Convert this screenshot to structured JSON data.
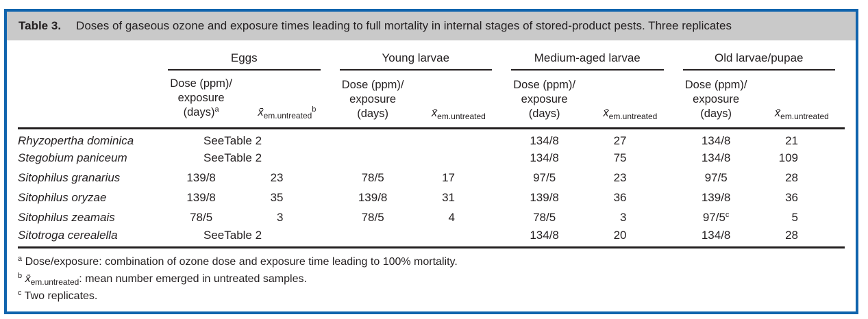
{
  "colors": {
    "frame_border_blue": "#1064ad",
    "title_bar_gray": "#c9c9c9",
    "text_black": "#231f20",
    "rule_black": "#231f20"
  },
  "title": {
    "label": "Table 3.",
    "caption": "Doses of gaseous ozone and exposure times leading to full mortality in internal stages of stored-product pests. Three replicates"
  },
  "groups": [
    {
      "label": "Eggs"
    },
    {
      "label": "Young larvae"
    },
    {
      "label": "Medium-aged larvae"
    },
    {
      "label": "Old larvae/pupae"
    }
  ],
  "subheaders": {
    "dose_line1": "Dose (ppm)/",
    "dose_line2": "exposure",
    "dose_line3": "(days)",
    "dose_sup_a": "a",
    "xbar": "x̄",
    "xbar_sub": "em.untreated",
    "xbar_sup_b": "b"
  },
  "rows": [
    {
      "species": "Rhyzopertha dominica",
      "eggs_note": "SeeTable 2",
      "young_dose": "",
      "young_x": "",
      "medium_dose": "134/8",
      "medium_x": "27",
      "old_dose": "134/8",
      "old_x": "21"
    },
    {
      "species": "Stegobium paniceum",
      "eggs_note": "SeeTable 2",
      "young_dose": "",
      "young_x": "",
      "medium_dose": "134/8",
      "medium_x": "75",
      "old_dose": "134/8",
      "old_x": "109"
    },
    {
      "species": "Sitophilus granarius",
      "eggs_dose": "139/8",
      "eggs_x": "23",
      "young_dose": "78/5",
      "young_x": "17",
      "medium_dose": "97/5",
      "medium_x": "23",
      "old_dose": "97/5",
      "old_x": "28"
    },
    {
      "species": "Sitophilus oryzae",
      "eggs_dose": "139/8",
      "eggs_x": "35",
      "young_dose": "139/8",
      "young_x": "31",
      "medium_dose": "139/8",
      "medium_x": "36",
      "old_dose": "139/8",
      "old_x": "36"
    },
    {
      "species": "Sitophilus zeamais",
      "eggs_dose": "78/5",
      "eggs_x": "3",
      "young_dose": "78/5",
      "young_x": "4",
      "medium_dose": "78/5",
      "medium_x": "3",
      "old_dose": "97/5",
      "old_dose_sup": "c",
      "old_x": "5"
    },
    {
      "species": "Sitotroga cerealella",
      "eggs_note": "SeeTable 2",
      "young_dose": "",
      "young_x": "",
      "medium_dose": "134/8",
      "medium_x": "20",
      "old_dose": "134/8",
      "old_x": "28"
    }
  ],
  "footnotes": {
    "a_marker": "a",
    "a_text": "Dose/exposure: combination of ozone dose and exposure time leading to 100% mortality.",
    "b_marker": "b",
    "b_xbar": "x̄",
    "b_sub": "em.untreated",
    "b_text": ": mean number emerged in untreated samples.",
    "c_marker": "c",
    "c_text": "Two replicates."
  }
}
